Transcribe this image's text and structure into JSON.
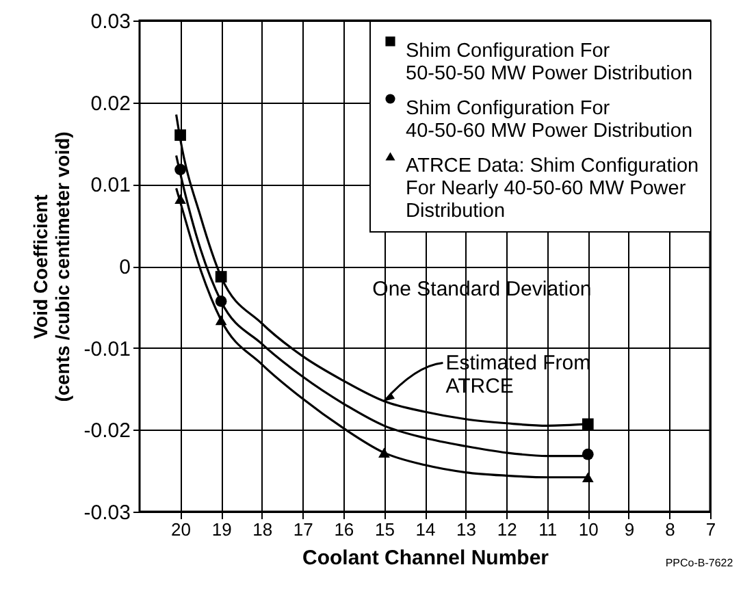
{
  "chart_data": {
    "type": "scatter",
    "xlabel": "Coolant Channel Number",
    "ylabel": "Void Coefficient\n(cents /cubic centimeter void)",
    "xlim": [
      21,
      7
    ],
    "xticks": [
      20,
      19,
      18,
      17,
      16,
      15,
      14,
      13,
      12,
      11,
      10,
      9,
      8,
      7
    ],
    "ylim": [
      -0.03,
      0.03
    ],
    "yticks": [
      0.03,
      0.02,
      0.01,
      0,
      -0.01,
      -0.02,
      -0.03
    ],
    "grid": true,
    "legend": "top right",
    "series": [
      {
        "name": "Shim Configuration For 50-50-50 MW Power Distribution",
        "marker": "square",
        "color": "#000000",
        "x": [
          20,
          19,
          10
        ],
        "values": [
          0.016,
          -0.0013,
          -0.0193
        ]
      },
      {
        "name": "Shim Configuration For 40-50-60 MW Power Distribution",
        "marker": "circle",
        "color": "#000000",
        "x": [
          20,
          19,
          10
        ],
        "values": [
          0.0118,
          -0.0043,
          -0.023
        ]
      },
      {
        "name": "ATRCE Data: Shim Configuration For Nearly 40-50-60 MW Power Distribution",
        "marker": "triangle",
        "color": "#000000",
        "x": [
          20,
          19,
          15,
          10
        ],
        "values": [
          0.0082,
          -0.0066,
          -0.0228,
          -0.0258
        ]
      },
      {
        "type": "line",
        "color": "#000000",
        "x": [
          20.1,
          20,
          19.5,
          19,
          18,
          17,
          16,
          15,
          14,
          13,
          12,
          11,
          10
        ],
        "values": [
          0.0185,
          0.0155,
          0.006,
          -0.0013,
          -0.007,
          -0.011,
          -0.014,
          -0.0165,
          -0.0178,
          -0.0187,
          -0.0192,
          -0.0195,
          -0.0193
        ]
      },
      {
        "type": "line",
        "color": "#000000",
        "x": [
          20.1,
          20,
          19.5,
          19,
          18,
          17,
          16,
          15,
          14,
          13,
          12,
          11,
          10
        ],
        "values": [
          0.0135,
          0.0113,
          0.002,
          -0.0043,
          -0.0095,
          -0.0135,
          -0.0168,
          -0.0195,
          -0.021,
          -0.022,
          -0.0228,
          -0.0232,
          -0.0232
        ]
      },
      {
        "type": "line",
        "color": "#000000",
        "x": [
          20.1,
          20,
          19.5,
          19,
          18,
          17,
          16,
          15,
          14,
          13,
          12,
          11,
          10
        ],
        "values": [
          0.0095,
          0.0078,
          -0.0005,
          -0.0066,
          -0.012,
          -0.0162,
          -0.0198,
          -0.0228,
          -0.0243,
          -0.0252,
          -0.0256,
          -0.0258,
          -0.0258
        ]
      }
    ],
    "annotations": [
      "One Standard Deviation",
      {
        "text": "Estimated From\nATRCE",
        "x": 15,
        "y": -0.0165
      },
      "PPCo-B-7622"
    ]
  }
}
